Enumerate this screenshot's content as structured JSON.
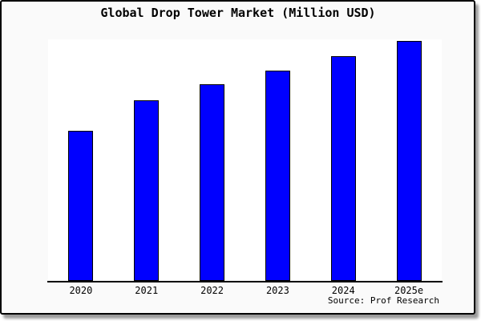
{
  "window": {
    "background": "#fafafa",
    "border_color": "#000000",
    "shadow_color": "#9a9a9a",
    "plot_background": "#ffffff"
  },
  "title": "Global Drop Tower Market (Million USD)",
  "source": "Source: Prof Research",
  "chart_data": {
    "type": "bar",
    "title": "Global Drop Tower Market (Million USD)",
    "categories": [
      "2020",
      "2021",
      "2022",
      "2023",
      "2024",
      "2025e"
    ],
    "values": [
      62.6,
      75.2,
      81.7,
      87.6,
      93.6,
      100
    ],
    "values_note": "No y-axis scale is shown in the image; values are relative bar heights with 2025e = 100",
    "xlabel": "",
    "ylabel": "",
    "ylim": [
      0,
      100.5
    ],
    "y_axis_visible": false,
    "gridlines": false,
    "legend_position": "none",
    "bar_color": "#0000ff",
    "bar_border_color": "#000000"
  }
}
